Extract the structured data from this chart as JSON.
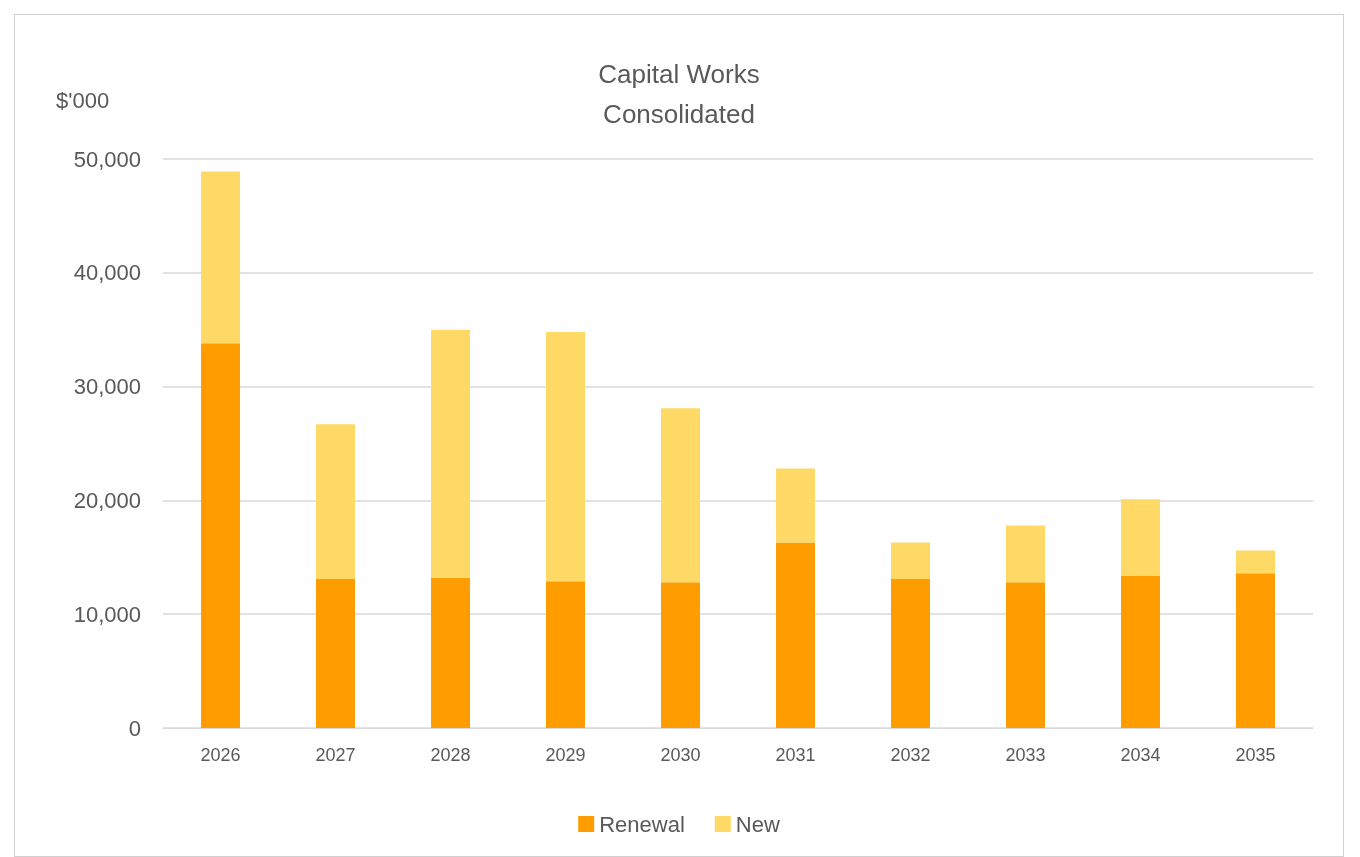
{
  "chart_data": {
    "type": "bar",
    "title": "Capital Works\nConsolidated",
    "ylabel": "$'000",
    "categories": [
      "2026",
      "2027",
      "2028",
      "2029",
      "2030",
      "2031",
      "2032",
      "2033",
      "2034",
      "2035"
    ],
    "series": [
      {
        "name": "Renewal",
        "color": "#ff9c00",
        "values": [
          33800,
          13100,
          13200,
          12900,
          12800,
          16300,
          13100,
          12800,
          13400,
          13600
        ]
      },
      {
        "name": "New",
        "color": "#ffd966",
        "values": [
          15100,
          13600,
          21800,
          21900,
          15300,
          6500,
          3200,
          5000,
          6700,
          2000
        ]
      }
    ],
    "stacked": true,
    "ylim": [
      0,
      50000
    ],
    "yticks": [
      0,
      {
        "value": 10000,
        "label": "10,000"
      },
      {
        "value": 20000,
        "label": "20,000"
      },
      {
        "value": 30000,
        "label": "30,000"
      },
      {
        "value": 40000,
        "label": "40,000"
      },
      {
        "value": 50000,
        "label": "50,000"
      }
    ],
    "grid": "y",
    "legend": "bottom"
  }
}
